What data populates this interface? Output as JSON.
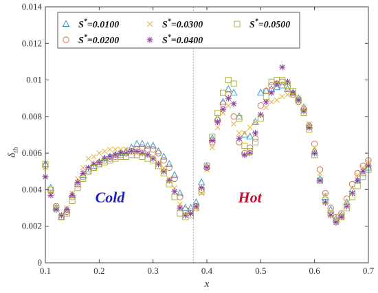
{
  "chart_data": {
    "type": "scatter",
    "title": "",
    "xlabel": "x",
    "ylabel_main": "δ",
    "ylabel_sub": "th",
    "xlim": [
      0.1,
      0.7
    ],
    "ylim": [
      0,
      0.014
    ],
    "xticks": [
      0.1,
      0.2,
      0.3,
      0.4,
      0.5,
      0.6,
      0.7
    ],
    "xtick_labels": [
      "0.1",
      "0.2",
      "0.3",
      "0.4",
      "0.5",
      "0.6",
      "0.7"
    ],
    "yticks": [
      0,
      0.002,
      0.004,
      0.006,
      0.008,
      0.01,
      0.012,
      0.014
    ],
    "ytick_labels": [
      "0",
      "0.002",
      "0.004",
      "0.006",
      "0.008",
      "0.01",
      "0.012",
      "0.014"
    ],
    "grid": false,
    "legend_position": "top",
    "divider_x": 0.375,
    "divider_color": "#7fb3d5",
    "annotations": [
      {
        "text": "Cold",
        "x": 0.22,
        "y": 0.0033,
        "color": "#1f1fbf"
      },
      {
        "text": "Hot",
        "x": 0.48,
        "y": 0.0033,
        "color": "#c8102e"
      }
    ],
    "legend": {
      "prefix": "S",
      "superscript": "*",
      "entries": [
        "=0.0100",
        "=0.0200",
        "=0.0300",
        "=0.0400",
        "=0.0500"
      ]
    },
    "series": [
      {
        "name": "S*=0.0100",
        "marker": "triangle",
        "color": "#3a9bd5",
        "x": [
          0.1,
          0.11,
          0.12,
          0.13,
          0.14,
          0.15,
          0.16,
          0.17,
          0.18,
          0.19,
          0.2,
          0.21,
          0.22,
          0.23,
          0.24,
          0.25,
          0.26,
          0.27,
          0.28,
          0.29,
          0.3,
          0.31,
          0.32,
          0.33,
          0.34,
          0.35,
          0.36,
          0.37,
          0.38,
          0.39,
          0.4,
          0.41,
          0.42,
          0.43,
          0.44,
          0.45,
          0.46,
          0.47,
          0.48,
          0.49,
          0.5,
          0.51,
          0.52,
          0.53,
          0.54,
          0.55,
          0.56,
          0.57,
          0.58,
          0.59,
          0.6,
          0.61,
          0.62,
          0.63,
          0.64,
          0.65,
          0.66,
          0.67,
          0.68,
          0.69,
          0.7
        ],
        "y": [
          0.0054,
          0.0041,
          0.003,
          0.0025,
          0.0029,
          0.0037,
          0.0043,
          0.0048,
          0.0051,
          0.0053,
          0.0055,
          0.0057,
          0.0058,
          0.0059,
          0.006,
          0.0061,
          0.0063,
          0.0065,
          0.0065,
          0.0064,
          0.0064,
          0.0061,
          0.0058,
          0.0054,
          0.0048,
          0.0038,
          0.003,
          0.003,
          0.0033,
          0.0044,
          0.0053,
          0.0068,
          0.0079,
          0.0088,
          0.0095,
          0.0093,
          0.008,
          0.007,
          0.0069,
          0.0077,
          0.0093,
          0.0094,
          0.0095,
          0.0096,
          0.0097,
          0.0095,
          0.0093,
          0.009,
          0.0085,
          0.0075,
          0.0061,
          0.0046,
          0.0036,
          0.0029,
          0.0024,
          0.0026,
          0.0033,
          0.004,
          0.0045,
          0.0049,
          0.0052
        ]
      },
      {
        "name": "S*=0.0200",
        "marker": "circle",
        "color": "#d9724a",
        "x": [
          0.1,
          0.11,
          0.12,
          0.13,
          0.14,
          0.15,
          0.16,
          0.17,
          0.18,
          0.19,
          0.2,
          0.21,
          0.22,
          0.23,
          0.24,
          0.25,
          0.26,
          0.27,
          0.28,
          0.29,
          0.3,
          0.31,
          0.32,
          0.33,
          0.34,
          0.35,
          0.36,
          0.37,
          0.38,
          0.39,
          0.4,
          0.41,
          0.42,
          0.43,
          0.44,
          0.45,
          0.46,
          0.47,
          0.48,
          0.49,
          0.5,
          0.51,
          0.52,
          0.53,
          0.54,
          0.55,
          0.56,
          0.57,
          0.58,
          0.59,
          0.6,
          0.61,
          0.62,
          0.63,
          0.64,
          0.65,
          0.66,
          0.67,
          0.68,
          0.69,
          0.7
        ],
        "y": [
          0.0053,
          0.004,
          0.0031,
          0.0025,
          0.0028,
          0.0036,
          0.0043,
          0.0047,
          0.005,
          0.0052,
          0.0054,
          0.0056,
          0.0057,
          0.0058,
          0.0059,
          0.006,
          0.0061,
          0.0062,
          0.0063,
          0.0062,
          0.0062,
          0.006,
          0.0056,
          0.0052,
          0.0046,
          0.0036,
          0.0029,
          0.0028,
          0.0031,
          0.004,
          0.0052,
          0.0066,
          0.0078,
          0.0087,
          0.0092,
          0.008,
          0.0066,
          0.006,
          0.0063,
          0.0068,
          0.0086,
          0.0094,
          0.0097,
          0.0098,
          0.0099,
          0.0096,
          0.0092,
          0.0088,
          0.0084,
          0.0075,
          0.0065,
          0.0051,
          0.0038,
          0.003,
          0.0025,
          0.0027,
          0.0035,
          0.0043,
          0.0049,
          0.0053,
          0.0056
        ]
      },
      {
        "name": "S*=0.0300",
        "marker": "cross",
        "color": "#e6b84a",
        "x": [
          0.1,
          0.11,
          0.12,
          0.13,
          0.14,
          0.15,
          0.16,
          0.17,
          0.18,
          0.19,
          0.2,
          0.21,
          0.22,
          0.23,
          0.24,
          0.25,
          0.26,
          0.27,
          0.28,
          0.29,
          0.3,
          0.31,
          0.32,
          0.33,
          0.34,
          0.35,
          0.36,
          0.37,
          0.38,
          0.39,
          0.4,
          0.41,
          0.42,
          0.43,
          0.44,
          0.45,
          0.46,
          0.47,
          0.48,
          0.49,
          0.5,
          0.51,
          0.52,
          0.53,
          0.54,
          0.55,
          0.56,
          0.57,
          0.58,
          0.59,
          0.6,
          0.61,
          0.62,
          0.63,
          0.64,
          0.65,
          0.66,
          0.67,
          0.68,
          0.69,
          0.7
        ],
        "y": [
          0.0052,
          0.0039,
          0.003,
          0.0026,
          0.003,
          0.0038,
          0.0046,
          0.0052,
          0.0057,
          0.0058,
          0.006,
          0.0061,
          0.0062,
          0.0062,
          0.0062,
          0.0062,
          0.0061,
          0.006,
          0.006,
          0.0059,
          0.0058,
          0.0055,
          0.0052,
          0.0046,
          0.0041,
          0.0032,
          0.0027,
          0.0027,
          0.003,
          0.0038,
          0.0051,
          0.0063,
          0.0074,
          0.0082,
          0.0086,
          0.0076,
          0.0071,
          0.0071,
          0.0074,
          0.0077,
          0.0081,
          0.0085,
          0.0088,
          0.0089,
          0.0091,
          0.0092,
          0.0092,
          0.009,
          0.0085,
          0.0076,
          0.0063,
          0.0049,
          0.0037,
          0.0028,
          0.0024,
          0.0026,
          0.0033,
          0.0041,
          0.0048,
          0.0052,
          0.0055
        ]
      },
      {
        "name": "S*=0.0400",
        "marker": "star",
        "color": "#8e3fa0",
        "x": [
          0.1,
          0.11,
          0.12,
          0.13,
          0.14,
          0.15,
          0.16,
          0.17,
          0.18,
          0.19,
          0.2,
          0.21,
          0.22,
          0.23,
          0.24,
          0.25,
          0.26,
          0.27,
          0.28,
          0.29,
          0.3,
          0.31,
          0.32,
          0.33,
          0.34,
          0.35,
          0.36,
          0.37,
          0.38,
          0.39,
          0.4,
          0.41,
          0.42,
          0.43,
          0.44,
          0.45,
          0.46,
          0.47,
          0.48,
          0.49,
          0.5,
          0.51,
          0.52,
          0.53,
          0.54,
          0.55,
          0.56,
          0.57,
          0.58,
          0.59,
          0.6,
          0.61,
          0.62,
          0.63,
          0.64,
          0.65,
          0.66,
          0.67,
          0.68,
          0.69,
          0.7
        ],
        "y": [
          0.0047,
          0.0037,
          0.0029,
          0.0026,
          0.0029,
          0.0037,
          0.0044,
          0.0049,
          0.0052,
          0.0054,
          0.0055,
          0.0057,
          0.0058,
          0.0059,
          0.006,
          0.006,
          0.0061,
          0.0061,
          0.006,
          0.0059,
          0.0057,
          0.0054,
          0.005,
          0.0045,
          0.0039,
          0.003,
          0.0026,
          0.0027,
          0.0031,
          0.0041,
          0.0052,
          0.0067,
          0.0077,
          0.0084,
          0.009,
          0.0087,
          0.0068,
          0.0059,
          0.006,
          0.0071,
          0.0081,
          0.0088,
          0.0093,
          0.0098,
          0.0107,
          0.0099,
          0.0093,
          0.0089,
          0.0083,
          0.0074,
          0.006,
          0.0045,
          0.0033,
          0.0026,
          0.0022,
          0.0025,
          0.0031,
          0.0038,
          0.0045,
          0.005,
          0.0053
        ]
      },
      {
        "name": "S*=0.0500",
        "marker": "square",
        "color": "#a8b04a",
        "x": [
          0.1,
          0.11,
          0.12,
          0.13,
          0.14,
          0.15,
          0.16,
          0.17,
          0.18,
          0.19,
          0.2,
          0.21,
          0.22,
          0.23,
          0.24,
          0.25,
          0.26,
          0.27,
          0.28,
          0.29,
          0.3,
          0.31,
          0.32,
          0.33,
          0.34,
          0.35,
          0.36,
          0.37,
          0.38,
          0.39,
          0.4,
          0.41,
          0.42,
          0.43,
          0.44,
          0.45,
          0.46,
          0.47,
          0.48,
          0.49,
          0.5,
          0.51,
          0.52,
          0.53,
          0.54,
          0.55,
          0.56,
          0.57,
          0.58,
          0.59,
          0.6,
          0.61,
          0.62,
          0.63,
          0.64,
          0.65,
          0.66,
          0.67,
          0.68,
          0.69,
          0.7
        ],
        "y": [
          0.0054,
          0.004,
          0.003,
          0.0025,
          0.0027,
          0.0034,
          0.0041,
          0.0046,
          0.005,
          0.0052,
          0.0054,
          0.0055,
          0.0056,
          0.0057,
          0.0058,
          0.0058,
          0.0059,
          0.0059,
          0.0058,
          0.0057,
          0.0056,
          0.0053,
          0.0049,
          0.0043,
          0.0036,
          0.0027,
          0.0025,
          0.0026,
          0.003,
          0.0039,
          0.0053,
          0.0069,
          0.0082,
          0.0093,
          0.01,
          0.0098,
          0.0079,
          0.0064,
          0.0061,
          0.0066,
          0.0079,
          0.0091,
          0.0099,
          0.01,
          0.01,
          0.0097,
          0.0094,
          0.0089,
          0.0082,
          0.0073,
          0.0059,
          0.0045,
          0.0034,
          0.0027,
          0.0023,
          0.0025,
          0.003,
          0.0036,
          0.0042,
          0.0047,
          0.0051
        ]
      }
    ]
  }
}
